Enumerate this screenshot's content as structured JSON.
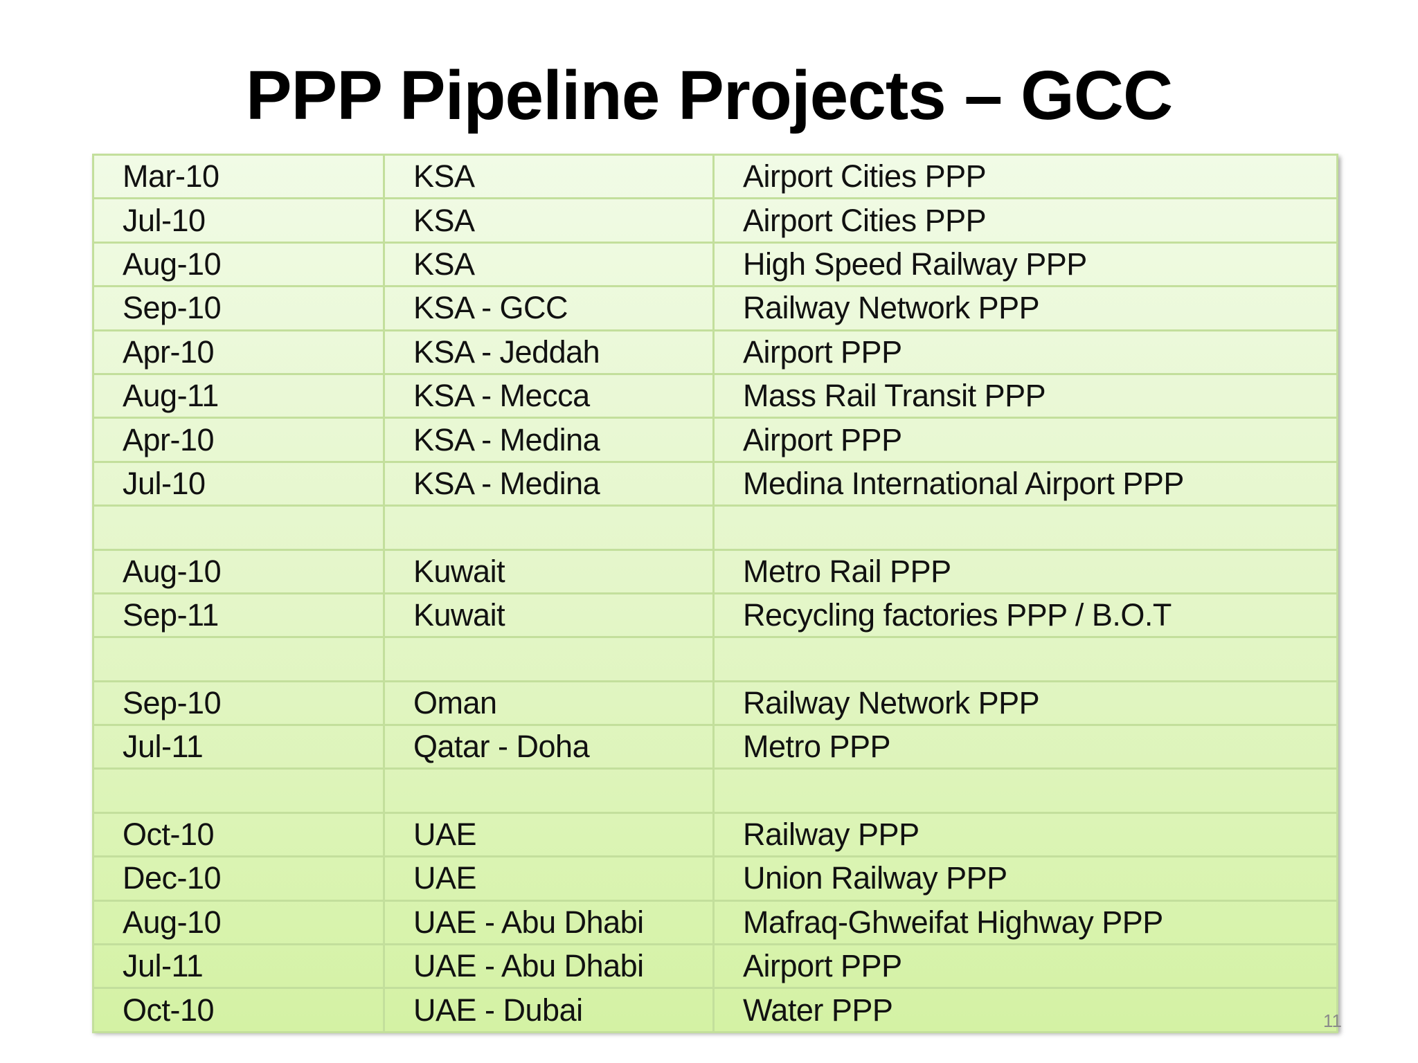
{
  "title": "PPP Pipeline Projects – GCC",
  "page_number": "11",
  "colors": {
    "table_top": "#f1fbe6",
    "table_bottom": "#d4f2a4",
    "grid_line": "#c3df9c"
  },
  "rows": [
    {
      "date": "Mar-10",
      "location": "KSA",
      "project": "Airport Cities PPP"
    },
    {
      "date": "Jul-10",
      "location": "KSA",
      "project": "Airport Cities PPP"
    },
    {
      "date": "Aug-10",
      "location": "KSA",
      "project": "High Speed Railway PPP"
    },
    {
      "date": "Sep-10",
      "location": "KSA - GCC",
      "project": "Railway Network PPP"
    },
    {
      "date": "Apr-10",
      "location": "KSA - Jeddah",
      "project": "Airport PPP"
    },
    {
      "date": "Aug-11",
      "location": "KSA - Mecca",
      "project": "Mass Rail Transit PPP"
    },
    {
      "date": "Apr-10",
      "location": "KSA - Medina",
      "project": "Airport PPP"
    },
    {
      "date": "Jul-10",
      "location": "KSA - Medina",
      "project": "Medina International Airport PPP"
    },
    {
      "date": "",
      "location": "",
      "project": ""
    },
    {
      "date": "Aug-10",
      "location": "Kuwait",
      "project": "Metro Rail PPP"
    },
    {
      "date": "Sep-11",
      "location": "Kuwait",
      "project": "Recycling factories PPP / B.O.T"
    },
    {
      "date": "",
      "location": "",
      "project": ""
    },
    {
      "date": "Sep-10",
      "location": "Oman",
      "project": "Railway Network PPP"
    },
    {
      "date": "Jul-11",
      "location": "Qatar - Doha",
      "project": "Metro PPP"
    },
    {
      "date": "",
      "location": "",
      "project": ""
    },
    {
      "date": "Oct-10",
      "location": "UAE",
      "project": "Railway PPP"
    },
    {
      "date": "Dec-10",
      "location": "UAE",
      "project": "Union Railway PPP"
    },
    {
      "date": "Aug-10",
      "location": "UAE - Abu Dhabi",
      "project": "Mafraq-Ghweifat Highway PPP"
    },
    {
      "date": "Jul-11",
      "location": "UAE - Abu Dhabi",
      "project": "Airport PPP"
    },
    {
      "date": "Oct-10",
      "location": "UAE - Dubai",
      "project": "Water PPP"
    }
  ]
}
